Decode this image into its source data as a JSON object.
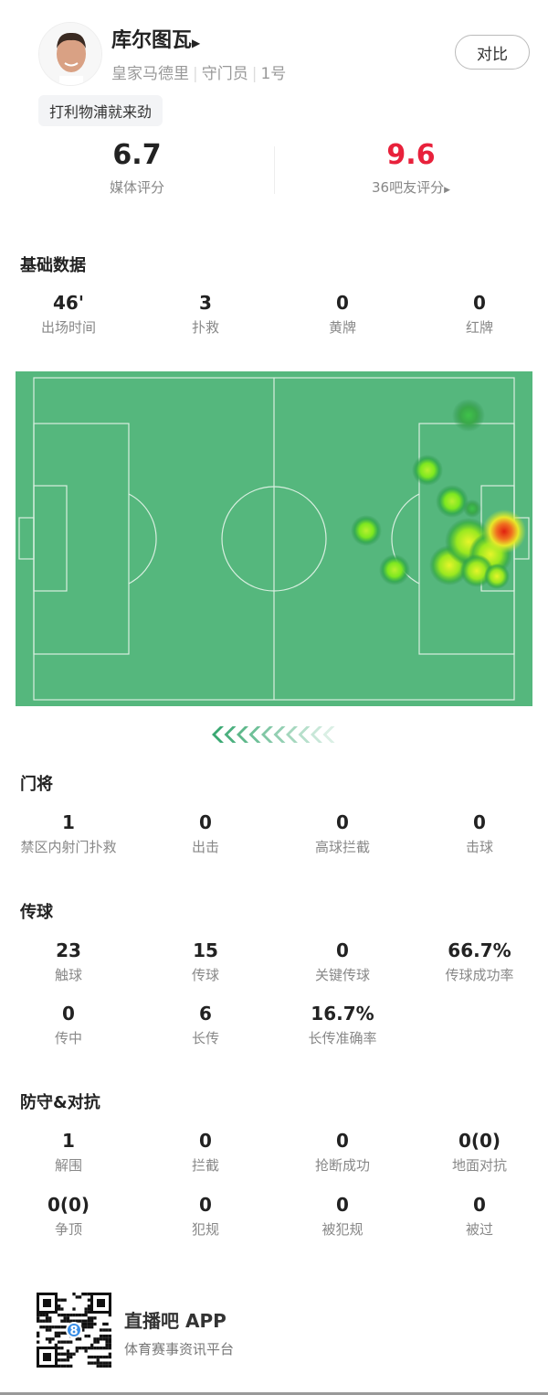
{
  "player": {
    "name": "库尔图瓦",
    "team": "皇家马德里",
    "position": "守门员",
    "number": "1号",
    "motto": "打利物浦就来劲",
    "compare_label": "对比"
  },
  "ratings": {
    "media": {
      "value": "6.7",
      "label": "媒体评分"
    },
    "fans": {
      "value": "9.6",
      "label": "36吧友评分",
      "color": "#e8213b"
    }
  },
  "sections": [
    {
      "title": "基础数据",
      "rows": [
        [
          {
            "v": "46'",
            "l": "出场时间"
          },
          {
            "v": "3",
            "l": "扑救"
          },
          {
            "v": "0",
            "l": "黄牌"
          },
          {
            "v": "0",
            "l": "红牌"
          }
        ]
      ]
    },
    {
      "title": "门将",
      "rows": [
        [
          {
            "v": "1",
            "l": "禁区内射门扑救"
          },
          {
            "v": "0",
            "l": "出击"
          },
          {
            "v": "0",
            "l": "高球拦截"
          },
          {
            "v": "0",
            "l": "击球"
          }
        ]
      ]
    },
    {
      "title": "传球",
      "rows": [
        [
          {
            "v": "23",
            "l": "触球"
          },
          {
            "v": "15",
            "l": "传球"
          },
          {
            "v": "0",
            "l": "关键传球"
          },
          {
            "v": "66.7%",
            "l": "传球成功率"
          }
        ],
        [
          {
            "v": "0",
            "l": "传中"
          },
          {
            "v": "6",
            "l": "长传"
          },
          {
            "v": "16.7%",
            "l": "长传准确率"
          }
        ]
      ]
    },
    {
      "title": "防守&对抗",
      "rows": [
        [
          {
            "v": "1",
            "l": "解围"
          },
          {
            "v": "0",
            "l": "拦截"
          },
          {
            "v": "0",
            "l": "抢断成功"
          },
          {
            "v": "0(0)",
            "l": "地面对抗"
          }
        ],
        [
          {
            "v": "0(0)",
            "l": "争顶"
          },
          {
            "v": "0",
            "l": "犯规"
          },
          {
            "v": "0",
            "l": "被犯规"
          },
          {
            "v": "0",
            "l": "被过"
          }
        ]
      ]
    }
  ],
  "pitch": {
    "color": "#55b77d",
    "line_color": "#d8efe0"
  },
  "footer": {
    "app_name": "直播吧 APP",
    "tagline": "体育赛事资讯平台",
    "qr_badge": "8"
  }
}
